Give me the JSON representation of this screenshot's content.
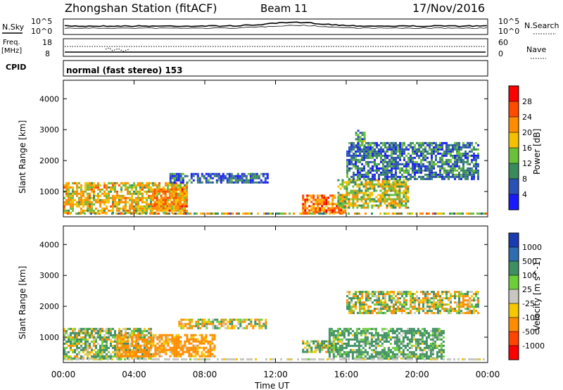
{
  "header": {
    "title": "Zhongshan Station (fitACF)",
    "beam": "Beam 11",
    "date": "17/Nov/2016"
  },
  "panels": {
    "nsky": {
      "left_label": "N.Sky",
      "left_ticks": [
        "10^5",
        "10^0"
      ],
      "right_label": "N.Search",
      "right_ticks": [
        "10^5",
        "10^0"
      ]
    },
    "freq": {
      "left_label_1": "Freq.",
      "left_label_2": "[MHz]",
      "left_ticks": [
        "18",
        "8"
      ],
      "right_label": "Nave",
      "right_ticks": [
        "60",
        "0"
      ]
    },
    "cpid": {
      "label": "CPID",
      "text": "normal (fast stereo) 153"
    }
  },
  "axes": {
    "ylabel": "Slant Range [km]",
    "xlabel": "Time UT",
    "y_ticks": [
      "1000",
      "2000",
      "3000",
      "4000"
    ],
    "x_ticks": [
      "00:00",
      "04:00",
      "08:00",
      "12:00",
      "16:00",
      "20:00",
      "00:00"
    ]
  },
  "colorbars": {
    "power": {
      "label": "Power [dB]",
      "ticks": [
        "4",
        "8",
        "12",
        "16",
        "20",
        "24",
        "28"
      ],
      "colors": [
        "#1a1aff",
        "#2a52b4",
        "#3a8a5c",
        "#6bbf3a",
        "#f5c000",
        "#ff8c00",
        "#ff4a00",
        "#ff0000"
      ]
    },
    "velocity": {
      "label": "Velocity [m s^-1]",
      "ticks": [
        "1000",
        "500",
        "100",
        "25",
        "-25",
        "-100",
        "-500",
        "-1000"
      ],
      "colors": [
        "#1a3cb0",
        "#2e6db0",
        "#3f8f62",
        "#6ccf3a",
        "#c8c8c0",
        "#f5c800",
        "#ff8c00",
        "#ff4400",
        "#ff0000"
      ]
    }
  },
  "chart_data": {
    "type": "heatmap",
    "title": "Zhongshan Station (fitACF)",
    "xlabel": "Time UT",
    "ylabel": "Slant Range [km]",
    "xlim": [
      0,
      24
    ],
    "ylim": [
      180,
      4600
    ],
    "x_unit": "hours UT",
    "series": [
      {
        "name": "Power [dB]",
        "clim": [
          0,
          32
        ],
        "regions": [
          {
            "t0": 0.0,
            "t1": 7.0,
            "r0": 300,
            "r1": 1300,
            "level": 18
          },
          {
            "t0": 5.0,
            "t1": 7.0,
            "r0": 400,
            "r1": 1100,
            "level": 22
          },
          {
            "t0": 6.0,
            "t1": 11.5,
            "r0": 1300,
            "r1": 1600,
            "level": 6
          },
          {
            "t0": 13.5,
            "t1": 16.0,
            "r0": 300,
            "r1": 900,
            "level": 24
          },
          {
            "t0": 15.5,
            "t1": 19.5,
            "r0": 500,
            "r1": 1400,
            "level": 16
          },
          {
            "t0": 16.0,
            "t1": 23.5,
            "r0": 1400,
            "r1": 2600,
            "level": 8
          },
          {
            "t0": 16.5,
            "t1": 17.0,
            "r0": 2500,
            "r1": 3000,
            "level": 10
          }
        ]
      },
      {
        "name": "Velocity [m s^-1]",
        "clim": [
          -1000,
          1000
        ],
        "regions": [
          {
            "t0": 0.0,
            "t1": 5.0,
            "r0": 300,
            "r1": 1300,
            "level": 100
          },
          {
            "t0": 3.0,
            "t1": 8.5,
            "r0": 400,
            "r1": 1100,
            "level": -250
          },
          {
            "t0": 6.5,
            "t1": 11.5,
            "r0": 1300,
            "r1": 1600,
            "level": 0
          },
          {
            "t0": 13.5,
            "t1": 15.5,
            "r0": 500,
            "r1": 900,
            "level": 100
          },
          {
            "t0": 15.0,
            "t1": 21.5,
            "r0": 300,
            "r1": 1300,
            "level": 200
          },
          {
            "t0": 16.0,
            "t1": 23.5,
            "r0": 1800,
            "r1": 2500,
            "level": 0
          }
        ]
      }
    ],
    "nsky_range": [
      0,
      100000
    ],
    "freq_range_mhz": [
      8,
      18
    ],
    "nave_range": [
      0,
      60
    ]
  }
}
